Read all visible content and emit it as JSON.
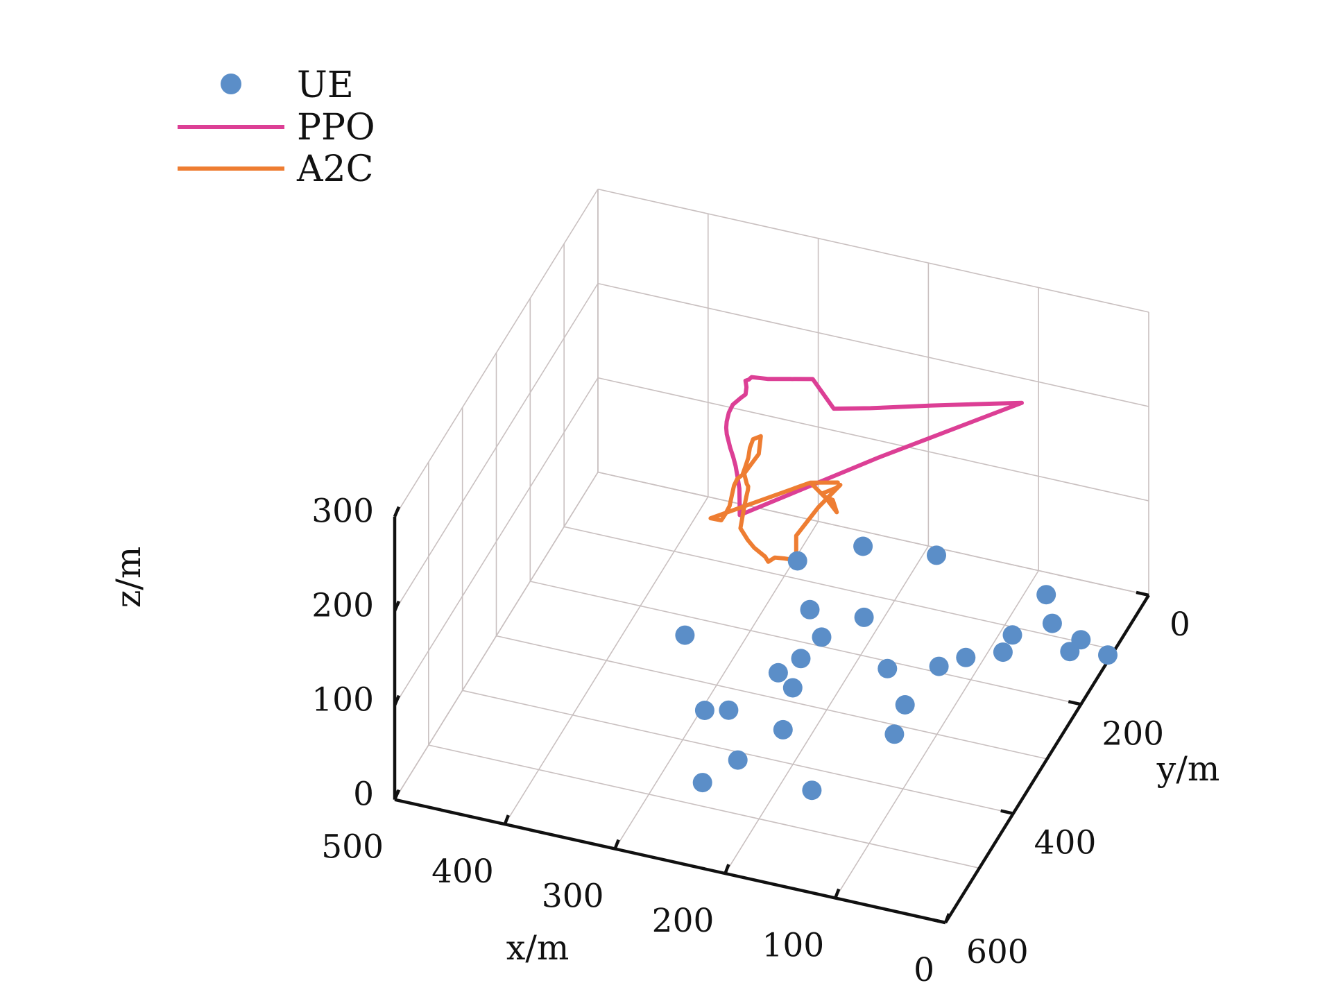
{
  "chart_data": {
    "type": "scatter",
    "projection": "3d",
    "xlabel": "x/m",
    "ylabel": "y/m",
    "zlabel": "z/m",
    "xlim": [
      0,
      500
    ],
    "ylim": [
      0,
      600
    ],
    "zlim": [
      0,
      300
    ],
    "x_ticks": [
      "0",
      "100",
      "200",
      "300",
      "400",
      "500"
    ],
    "y_ticks": [
      "0",
      "200",
      "400",
      "600"
    ],
    "z_ticks": [
      "0",
      "100",
      "200",
      "300"
    ],
    "grid": true,
    "legend_position": "top-left",
    "colors": {
      "ue": "#5b8ec8",
      "ppo": "#dc3f95",
      "a2c": "#ee7d32"
    },
    "series": [
      {
        "name": "UE",
        "kind": "markers",
        "points": [
          [
            297,
            71,
            0
          ],
          [
            252,
            24,
            0
          ],
          [
            189,
            12,
            0
          ],
          [
            263,
            145,
            0
          ],
          [
            216,
            138,
            0
          ],
          [
            240,
            185,
            0
          ],
          [
            172,
            212,
            0
          ],
          [
            246,
            227,
            0
          ],
          [
            257,
            258,
            0
          ],
          [
            238,
            277,
            0
          ],
          [
            297,
            345,
            0
          ],
          [
            278,
            336,
            0
          ],
          [
            225,
            348,
            0
          ],
          [
            350,
            231,
            0
          ],
          [
            172,
            435,
            0
          ],
          [
            246,
            413,
            0
          ],
          [
            263,
            462,
            0
          ],
          [
            82,
            36,
            0
          ],
          [
            63,
            80,
            0
          ],
          [
            89,
            113,
            0
          ],
          [
            115,
            166,
            0
          ],
          [
            88,
            144,
            0
          ],
          [
            132,
            190,
            0
          ],
          [
            140,
            264,
            0
          ],
          [
            134,
            315,
            0
          ],
          [
            32,
            96,
            0
          ],
          [
            35,
            119,
            0
          ],
          [
            3,
            111,
            0
          ]
        ]
      },
      {
        "name": "PPO",
        "kind": "line",
        "points": [
          [
            291,
            261,
            160
          ],
          [
            293,
            255,
            170
          ],
          [
            295,
            249,
            180
          ],
          [
            298,
            245,
            190
          ],
          [
            300,
            244,
            200
          ],
          [
            302,
            245,
            210
          ],
          [
            304,
            247,
            220
          ],
          [
            304,
            252,
            230
          ],
          [
            304,
            257,
            240
          ],
          [
            303,
            262,
            250
          ],
          [
            301,
            267,
            260
          ],
          [
            300,
            264,
            268
          ],
          [
            298,
            259,
            274
          ],
          [
            293,
            251,
            278
          ],
          [
            290,
            247,
            280
          ],
          [
            292,
            238,
            282
          ],
          [
            295,
            231,
            284
          ],
          [
            293,
            228,
            284
          ],
          [
            291,
            226,
            286
          ],
          [
            282,
            208,
            276
          ],
          [
            264,
            200,
            276
          ],
          [
            246,
            192,
            276
          ],
          [
            229,
            185,
            245
          ],
          [
            200,
            171,
            245
          ],
          [
            153,
            145,
            245
          ],
          [
            105,
            120,
            245
          ],
          [
            82,
            108,
            245
          ],
          [
            190,
            179,
            200
          ],
          [
            291,
            261,
            160
          ]
        ]
      },
      {
        "name": "A2C",
        "kind": "line",
        "points": [
          [
            274,
            254,
            244
          ],
          [
            281,
            254,
            239
          ],
          [
            284,
            254,
            229
          ],
          [
            286,
            252,
            217
          ],
          [
            289,
            251,
            206
          ],
          [
            291,
            253,
            198
          ],
          [
            296,
            252,
            192
          ],
          [
            298,
            255,
            186
          ],
          [
            298,
            261,
            180
          ],
          [
            299,
            265,
            170
          ],
          [
            302,
            268,
            162
          ],
          [
            305,
            270,
            156
          ],
          [
            315,
            269,
            155
          ],
          [
            261,
            150,
            138
          ],
          [
            249,
            108,
            117
          ],
          [
            261,
            150,
            138
          ],
          [
            244,
            158,
            130
          ],
          [
            230,
            173,
            128
          ],
          [
            229,
            188,
            150
          ],
          [
            228,
            216,
            170
          ],
          [
            227,
            223,
            178
          ],
          [
            214,
            229,
            190
          ],
          [
            208,
            234,
            198
          ],
          [
            221,
            257,
            184
          ],
          [
            233,
            283,
            166
          ],
          [
            233,
            283,
            140
          ],
          [
            242,
            289,
            143
          ],
          [
            249,
            294,
            145
          ],
          [
            255,
            294,
            139
          ],
          [
            259,
            290,
            141
          ],
          [
            270,
            287,
            146
          ],
          [
            276,
            286,
            152
          ],
          [
            283,
            285,
            162
          ],
          [
            283,
            276,
            175
          ],
          [
            283,
            268,
            185
          ],
          [
            283,
            263,
            190
          ],
          [
            283,
            262,
            193
          ],
          [
            284,
            263,
            196
          ],
          [
            287,
            261,
            205
          ],
          [
            279,
            244,
            218
          ],
          [
            274,
            254,
            244
          ]
        ]
      }
    ]
  }
}
